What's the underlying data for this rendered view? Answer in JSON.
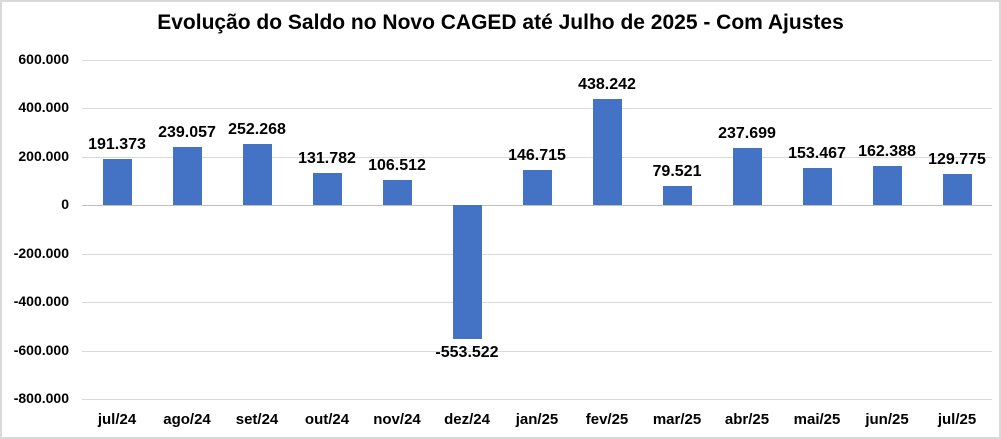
{
  "colors": {
    "bar_fill": "#4472C4",
    "gridline": "#d9d9d9",
    "zero_axis_line": "#bfbfbf",
    "text": "#000000",
    "background": "#ffffff",
    "chart_border": "#d9d9d9"
  },
  "chart_data": {
    "type": "bar",
    "title": "Evolução do Saldo no Novo CAGED até Julho de 2025 - Com Ajustes",
    "categories": [
      "jul/24",
      "ago/24",
      "set/24",
      "out/24",
      "nov/24",
      "dez/24",
      "jan/25",
      "fev/25",
      "mar/25",
      "abr/25",
      "mai/25",
      "jun/25",
      "jul/25"
    ],
    "values": [
      191373,
      239057,
      252268,
      131782,
      106512,
      -553522,
      146715,
      438242,
      79521,
      237699,
      153467,
      162388,
      129775
    ],
    "data_labels": [
      "191.373",
      "239.057",
      "252.268",
      "131.782",
      "106.512",
      "-553.522",
      "146.715",
      "438.242",
      "79.521",
      "237.699",
      "153.467",
      "162.388",
      "129.775"
    ],
    "xlabel": "",
    "ylabel": "",
    "ylim": [
      -800000,
      600000
    ],
    "ytick_step": 200000,
    "ytick_values": [
      600000,
      400000,
      200000,
      0,
      -200000,
      -400000,
      -600000,
      -800000
    ],
    "ytick_labels": [
      "600.000",
      "400.000",
      "200.000",
      "0",
      "-200.000",
      "-400.000",
      "-600.000",
      "-800.000"
    ],
    "grid": true,
    "legend_position": "none",
    "data_label_position": "outside-end"
  }
}
